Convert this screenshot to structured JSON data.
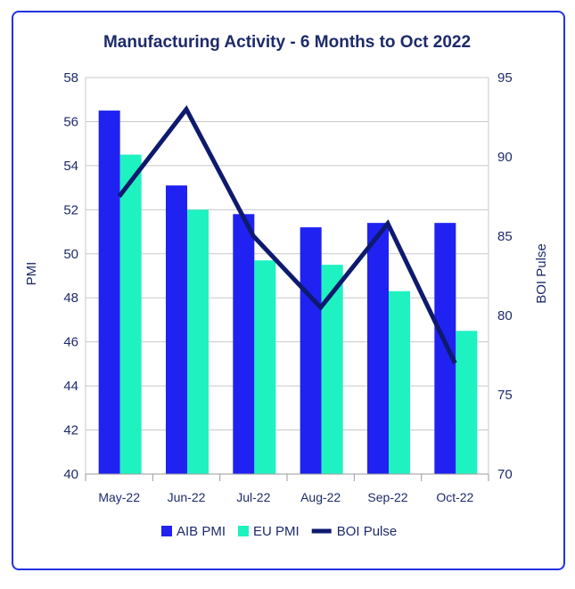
{
  "chart_data": {
    "type": "bar",
    "title": "Manufacturing Activity - 6 Months to Oct 2022",
    "categories": [
      "May-22",
      "Jun-22",
      "Jul-22",
      "Aug-22",
      "Sep-22",
      "Oct-22"
    ],
    "series": [
      {
        "name": "AIB PMI",
        "type": "bar",
        "axis": "left",
        "color": "#1f22f0",
        "values": [
          56.5,
          53.1,
          51.8,
          51.2,
          51.4,
          51.4
        ]
      },
      {
        "name": "EU PMI",
        "type": "bar",
        "axis": "left",
        "color": "#1ef2c0",
        "values": [
          54.5,
          52.0,
          49.7,
          49.5,
          48.3,
          46.5
        ]
      },
      {
        "name": "BOI Pulse",
        "type": "line",
        "axis": "right",
        "color": "#0e1a6e",
        "values": [
          87.5,
          93.0,
          85.0,
          80.5,
          85.8,
          77.0
        ]
      }
    ],
    "ylabel": "PMI",
    "ylim": [
      40,
      58
    ],
    "yticks": [
      "58",
      "56",
      "54",
      "52",
      "50",
      "48",
      "46",
      "44",
      "42",
      "40"
    ],
    "y2label": "BOI Pulse",
    "y2lim": [
      70,
      95
    ],
    "y2ticks": [
      "95",
      "90",
      "85",
      "80",
      "75",
      "70"
    ],
    "grid": "horizontal",
    "legend": "bottom"
  }
}
